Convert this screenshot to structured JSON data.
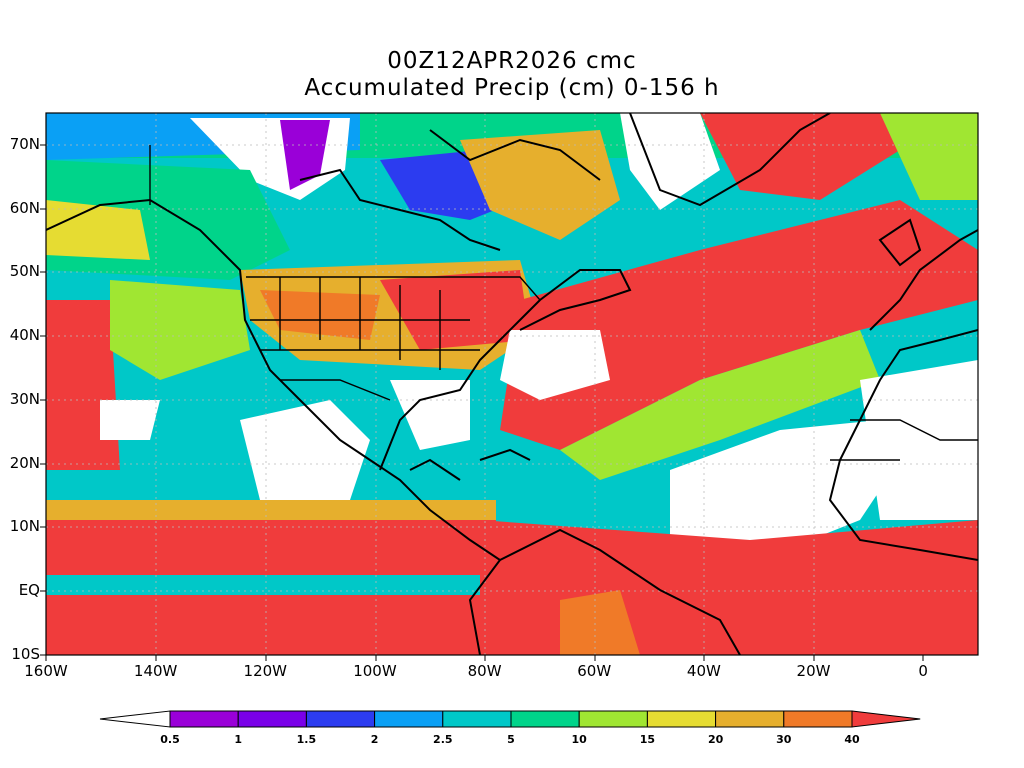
{
  "title": {
    "line1": "00Z12APR2026 cmc",
    "line2": "Accumulated Precip (cm) 0-156 h"
  },
  "axes": {
    "lon_range": [
      -160,
      10
    ],
    "lat_range": [
      -10,
      75
    ],
    "lat_labels": [
      {
        "value": 70,
        "text": "70N"
      },
      {
        "value": 60,
        "text": "60N"
      },
      {
        "value": 50,
        "text": "50N"
      },
      {
        "value": 40,
        "text": "40N"
      },
      {
        "value": 30,
        "text": "30N"
      },
      {
        "value": 20,
        "text": "20N"
      },
      {
        "value": 10,
        "text": "10N"
      },
      {
        "value": 0,
        "text": "EQ"
      },
      {
        "value": -10,
        "text": "10S"
      }
    ],
    "lon_labels": [
      {
        "value": -160,
        "text": "160W"
      },
      {
        "value": -140,
        "text": "140W"
      },
      {
        "value": -120,
        "text": "120W"
      },
      {
        "value": -100,
        "text": "100W"
      },
      {
        "value": -80,
        "text": "80W"
      },
      {
        "value": -60,
        "text": "60W"
      },
      {
        "value": -40,
        "text": "40W"
      },
      {
        "value": -20,
        "text": "20W"
      },
      {
        "value": 0,
        "text": "0"
      }
    ]
  },
  "colorbar": {
    "colors": [
      "#9a00d8",
      "#7a00e8",
      "#2c3cf0",
      "#0aa0f5",
      "#00c8c8",
      "#00d48a",
      "#a0e632",
      "#e6dc32",
      "#e6af2d",
      "#f07a28",
      "#f03c3c"
    ],
    "below_color": "#ffffff",
    "labels": [
      "0.5",
      "1",
      "1.5",
      "2",
      "2.5",
      "5",
      "10",
      "15",
      "20",
      "30",
      "40"
    ]
  }
}
